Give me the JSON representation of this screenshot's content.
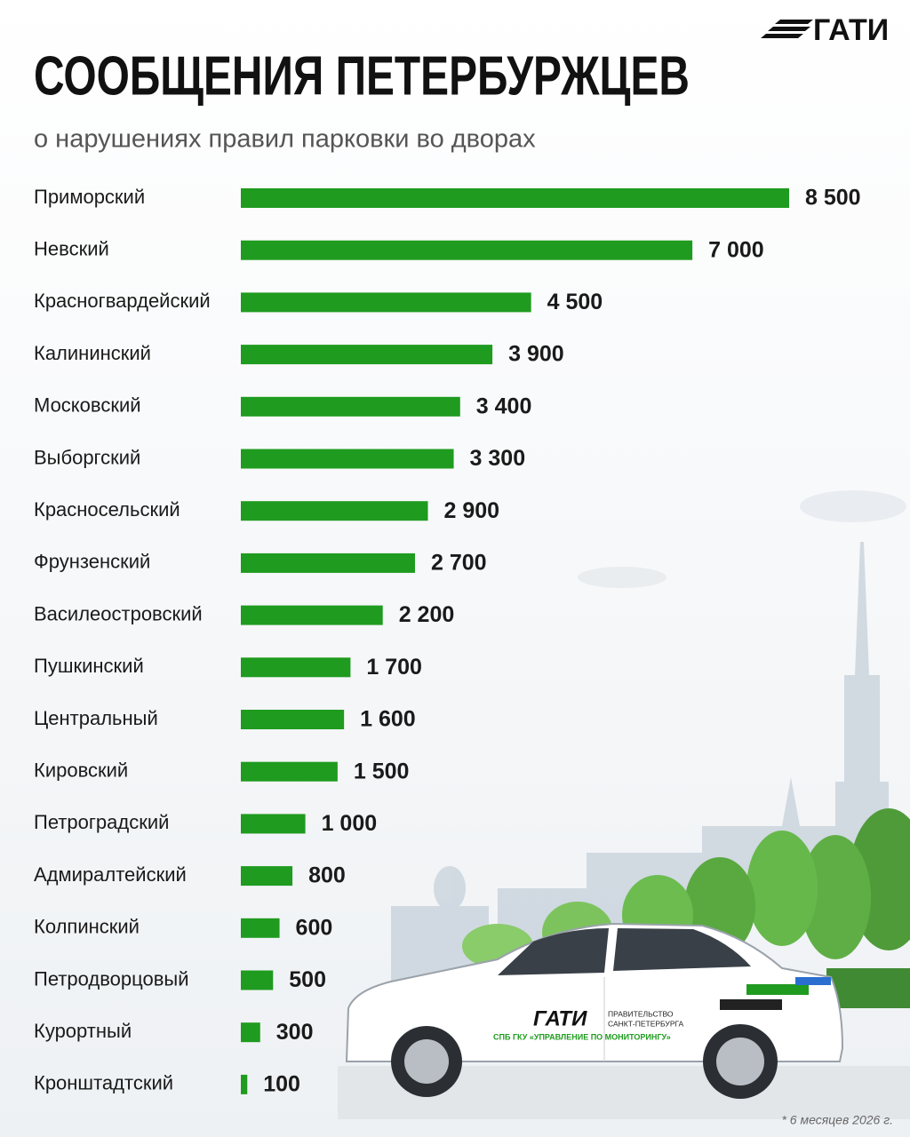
{
  "chart_data": {
    "type": "bar",
    "logo": "ГАТИ",
    "title": "СООБЩЕНИЯ ПЕТЕРБУРЖЦЕВ",
    "subtitle": "о нарушениях правил парковки во дворах",
    "categories": [
      "Приморский",
      "Невский",
      "Красногвардейский",
      "Калининский",
      "Московский",
      "Выборгский",
      "Красносельский",
      "Фрунзенский",
      "Василеостровский",
      "Пушкинский",
      "Центральный",
      "Кировский",
      "Петроградский",
      "Адмиралтейский",
      "Колпинский",
      "Петродворцовый",
      "Курортный",
      "Кронштадтский"
    ],
    "values": [
      8500,
      7000,
      4500,
      3900,
      3400,
      3300,
      2900,
      2700,
      2200,
      1700,
      1600,
      1500,
      1000,
      800,
      600,
      500,
      300,
      100
    ],
    "value_labels": [
      "8 500",
      "7 000",
      "4 500",
      "3 900",
      "3 400",
      "3 300",
      "2 900",
      "2 700",
      "2 200",
      "1 700",
      "1 600",
      "1 500",
      "1 000",
      "800",
      "600",
      "500",
      "300",
      "100"
    ],
    "color": "#1f9b1f",
    "footnote": "* 6 месяцев 2026 г.",
    "car_labels": [
      "ГАТИ",
      "ПРАВИТЕЛЬСТВО",
      "САНКТ-ПЕТЕРБУРГА",
      "СПБ ГКУ «УПРАВЛЕНИЕ ПО МОНИТОРИНГУ»"
    ]
  }
}
